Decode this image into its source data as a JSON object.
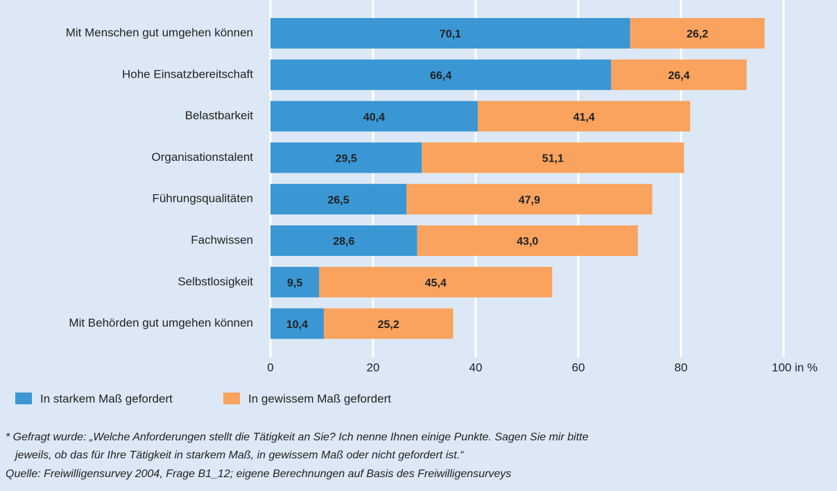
{
  "chart_data": {
    "type": "stacked-barh",
    "categories": [
      "Mit Menschen gut umgehen können",
      "Hohe Einsatzbereitschaft",
      "Belastbarkeit",
      "Organisationstalent",
      "Führungsqualitäten",
      "Fachwissen",
      "Selbstlosigkeit",
      "Mit Behörden gut umgehen können"
    ],
    "series": [
      {
        "name": "In starkem Maß gefordert",
        "color": "#3a97d4",
        "values": [
          70.1,
          66.4,
          40.4,
          29.5,
          26.5,
          28.6,
          9.5,
          10.4
        ],
        "value_labels": [
          "70,1",
          "66,4",
          "40,4",
          "29,5",
          "26,5",
          "28,6",
          "9,5",
          "10,4"
        ]
      },
      {
        "name": "In gewissem Maß gefordert",
        "color": "#f9a35e",
        "values": [
          26.2,
          26.4,
          41.4,
          51.1,
          47.9,
          43.0,
          45.4,
          25.2
        ],
        "value_labels": [
          "26,2",
          "26,4",
          "41,4",
          "51,1",
          "47,9",
          "43,0",
          "45,4",
          "25,2"
        ]
      }
    ],
    "xlim": [
      0,
      100
    ],
    "xticks": [
      0,
      20,
      40,
      60,
      80,
      {
        "value": 100,
        "label": "100 in %"
      }
    ],
    "grid": true,
    "notes": [
      "* Gefragt wurde: „Welche Anforderungen stellt die Tätigkeit an Sie? Ich nenne Ihnen einige Punkte. Sagen Sie mir bitte",
      "jeweils, ob das für Ihre Tätigkeit in starkem Maß, in gewissem Maß oder nicht gefordert ist.“",
      "Quelle: Freiwilligensurvey 2004, Frage B1_12; eigene Berechnungen auf Basis des Freiwilligensurveys"
    ]
  }
}
